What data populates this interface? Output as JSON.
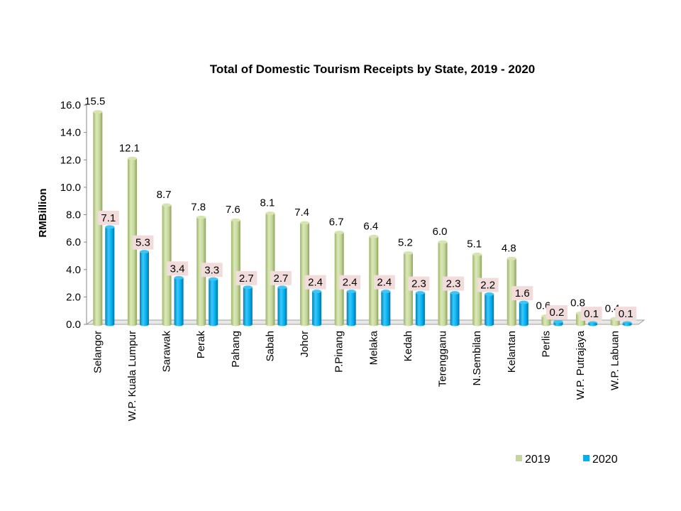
{
  "chart_data": {
    "type": "bar",
    "title": "Total of  Domestic Tourism Receipts by State, 2019 - 2020",
    "xlabel": "",
    "ylabel": "RMBillion",
    "ylim": [
      0,
      16
    ],
    "yticks": [
      "0.0",
      "2.0",
      "4.0",
      "6.0",
      "8.0",
      "10.0",
      "12.0",
      "14.0",
      "16.0"
    ],
    "categories": [
      "Selangor",
      "W.P. Kuala Lumpur",
      "Sarawak",
      "Perak",
      "Pahang",
      "Sabah",
      "Johor",
      "P.Pinang",
      "Melaka",
      "Kedah",
      "Terengganu",
      "N.Sembilan",
      "Kelantan",
      "Perlis",
      "W.P. Putrajaya",
      "W.P. Labuan"
    ],
    "series": [
      {
        "name": "2019",
        "color": "#c4d79b",
        "values": [
          15.5,
          12.1,
          8.7,
          7.8,
          7.6,
          8.1,
          7.4,
          6.7,
          6.4,
          5.2,
          6.0,
          5.1,
          4.8,
          0.6,
          0.8,
          0.4
        ],
        "labels": [
          "15.5",
          "12.1",
          "8.7",
          "7.8",
          "7.6",
          "8.1",
          "7.4",
          "6.7",
          "6.4",
          "5.2",
          "6.0",
          "5.1",
          "4.8",
          "0.6",
          "0.8",
          "0.4"
        ]
      },
      {
        "name": "2020",
        "color": "#00b0f0",
        "values": [
          7.1,
          5.3,
          3.4,
          3.3,
          2.7,
          2.7,
          2.4,
          2.4,
          2.4,
          2.3,
          2.3,
          2.2,
          1.6,
          0.2,
          0.1,
          0.1
        ],
        "labels": [
          "7.1",
          "5.3",
          "3.4",
          "3.3",
          "2.7",
          "2.7",
          "2.4",
          "2.4",
          "2.4",
          "2.3",
          "2.3",
          "2.2",
          "1.6",
          "0.2",
          "0.1",
          "0.1"
        ]
      }
    ],
    "legend": "bottom-right",
    "grid": false
  }
}
